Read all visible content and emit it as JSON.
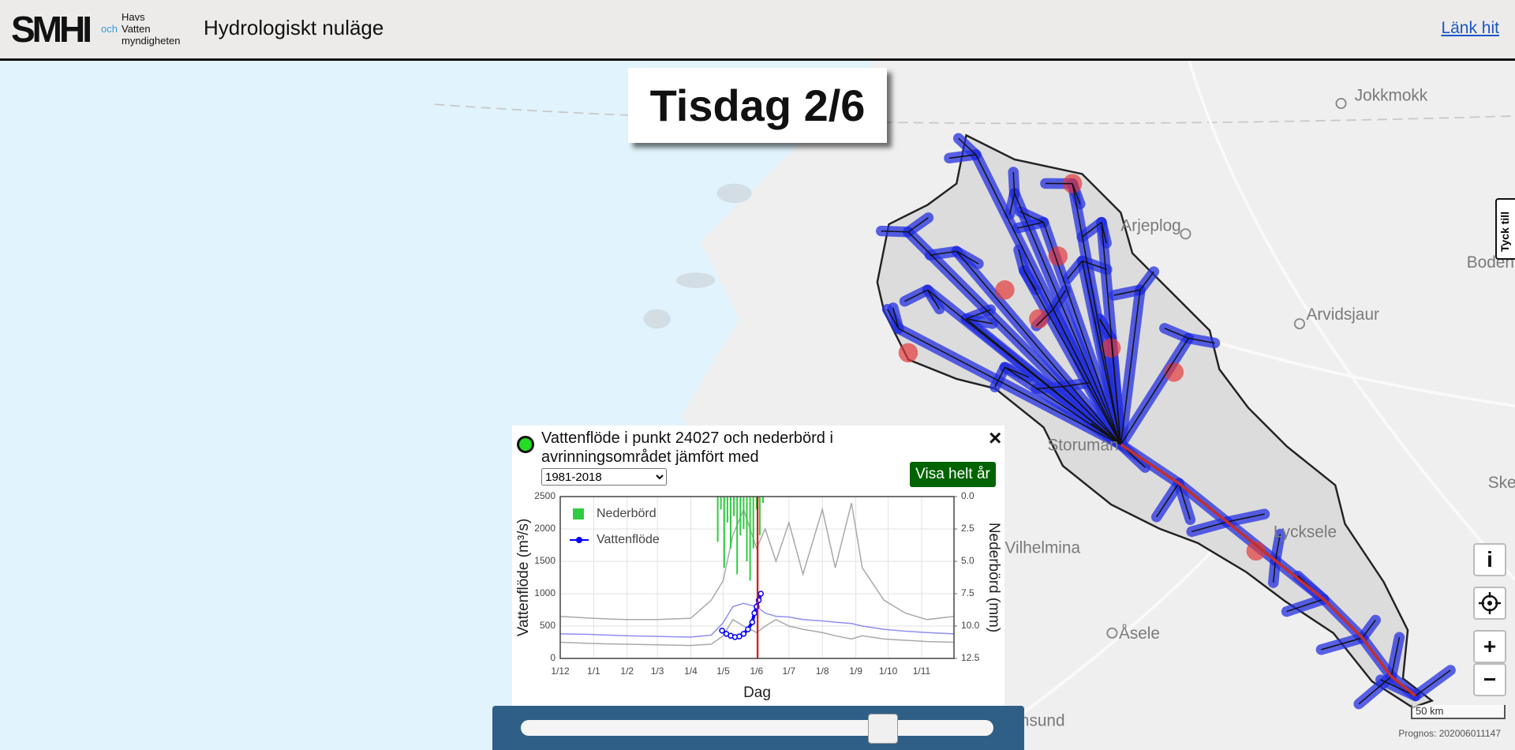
{
  "header": {
    "logo": {
      "smhi": "SMHI",
      "och": "och",
      "havs": "Havs",
      "vatten": "Vatten",
      "myndigheten": "myndigheten"
    },
    "title": "Hydrologiskt nuläge",
    "link": "Länk hit"
  },
  "day_label": "Tisdag 2/6",
  "popup": {
    "title": "Vattenflöde i punkt 24027 och nederbörd i avrinningsområdet jämfört med",
    "period_options": [
      "1981-2018"
    ],
    "button": "Visa helt år",
    "close": "×"
  },
  "chart_data": {
    "type": "line",
    "xlabel": "Dag",
    "ylabel": "Vattenflöde (m³/s)",
    "y2label": "Nederbörd (mm)",
    "xlim": [
      0,
      365
    ],
    "xticks": [
      {
        "value": 0,
        "label": "1/12"
      },
      {
        "value": 31,
        "label": "1/1"
      },
      {
        "value": 62,
        "label": "1/2"
      },
      {
        "value": 90,
        "label": "1/3"
      },
      {
        "value": 121,
        "label": "1/4"
      },
      {
        "value": 151,
        "label": "1/5"
      },
      {
        "value": 182,
        "label": "1/6"
      },
      {
        "value": 212,
        "label": "1/7"
      },
      {
        "value": 243,
        "label": "1/8"
      },
      {
        "value": 274,
        "label": "1/9"
      },
      {
        "value": 304,
        "label": "1/10"
      },
      {
        "value": 335,
        "label": "1/11"
      }
    ],
    "ylim": [
      0,
      2500
    ],
    "yticks": [
      0,
      500,
      1000,
      1500,
      2000,
      2500
    ],
    "y2lim": [
      0,
      12.5
    ],
    "y2_reversed": true,
    "y2ticks": [
      {
        "value": 0,
        "label": "0.0"
      },
      {
        "value": 2.5,
        "label": "2.5"
      },
      {
        "value": 5,
        "label": "5.0"
      },
      {
        "value": 7.5,
        "label": "7.5"
      },
      {
        "value": 10,
        "label": "10.0"
      },
      {
        "value": 12.5,
        "label": "12.5"
      }
    ],
    "grid": true,
    "legend": "upper left",
    "current_x": 183,
    "current_color": "#e00000",
    "series": [
      {
        "color": "#9a9a9a",
        "x": [
          0,
          30,
          60,
          90,
          121,
          140,
          151,
          160,
          170,
          182,
          190,
          200,
          212,
          225,
          243,
          255,
          270,
          280,
          300,
          320,
          340,
          365
        ],
        "values": [
          650,
          620,
          600,
          600,
          620,
          900,
          1200,
          1900,
          2300,
          1700,
          2000,
          1500,
          2100,
          1300,
          2300,
          1400,
          2400,
          1400,
          900,
          700,
          600,
          650
        ]
      },
      {
        "color": "#9a9a9a",
        "x": [
          0,
          30,
          60,
          90,
          121,
          140,
          151,
          160,
          170,
          182,
          190,
          200,
          212,
          225,
          243,
          255,
          270,
          280,
          300,
          320,
          340,
          365
        ],
        "values": [
          250,
          230,
          220,
          210,
          200,
          220,
          350,
          600,
          500,
          400,
          500,
          600,
          500,
          450,
          400,
          350,
          300,
          350,
          300,
          280,
          260,
          250
        ]
      },
      {
        "color": "#7b7bf0",
        "x": [
          0,
          30,
          60,
          90,
          121,
          140,
          151,
          160,
          170,
          182,
          190,
          200,
          212,
          225,
          243,
          255,
          270,
          280,
          300,
          320,
          340,
          365
        ],
        "values": [
          380,
          370,
          350,
          340,
          330,
          360,
          550,
          800,
          850,
          800,
          700,
          650,
          640,
          600,
          580,
          560,
          540,
          500,
          450,
          420,
          400,
          380
        ]
      },
      {
        "name": "Nederbörd",
        "type": "bar",
        "axis": "y2",
        "color": "#2ecc40",
        "x": [
          146,
          149,
          152,
          155,
          158,
          161,
          164,
          167,
          170,
          173,
          176,
          179,
          182,
          185,
          188
        ],
        "values": [
          3.5,
          1,
          5.5,
          2,
          4,
          1.5,
          6,
          3,
          2.5,
          5,
          6.5,
          4,
          1,
          3,
          0.5
        ]
      },
      {
        "name": "Vattenflöde",
        "color": "#0000ff",
        "x": [
          150,
          154,
          158,
          162,
          166,
          170,
          174,
          178,
          180,
          182,
          184,
          186
        ],
        "values": [
          430,
          380,
          350,
          330,
          340,
          380,
          450,
          560,
          700,
          800,
          900,
          1000
        ]
      }
    ]
  },
  "map": {
    "places": [
      "Jokkmokk",
      "Arjeplog",
      "Boden",
      "Arvidsjaur",
      "Storuman",
      "Vilhelmina",
      "Lycksele",
      "Åsele",
      "Ske",
      "Strömsund"
    ],
    "scale": "50 km",
    "prognos": "Prognos: 202006011147",
    "feedback": "Tyck till",
    "controls": {
      "info": "i",
      "zoom_in": "+",
      "zoom_out": "−"
    }
  }
}
